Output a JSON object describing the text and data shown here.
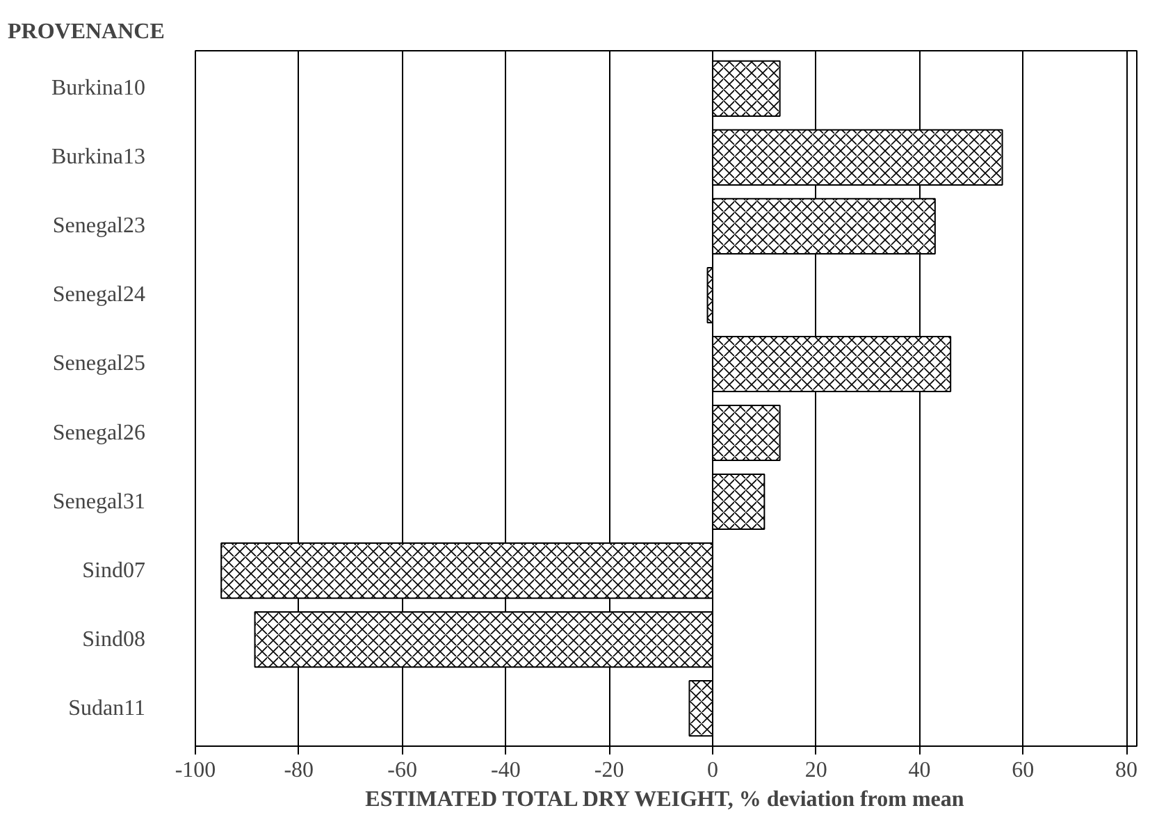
{
  "chart_data": {
    "type": "bar",
    "orientation": "horizontal",
    "ylabel": "PROVENANCE",
    "xlabel": "ESTIMATED TOTAL DRY WEIGHT, % deviation from mean",
    "categories": [
      "Burkina10",
      "Burkina13",
      "Senegal23",
      "Senegal24",
      "Senegal25",
      "Senegal26",
      "Senegal31",
      "Sind07",
      "Sind08",
      "Sudan11"
    ],
    "values": [
      13,
      56,
      43,
      -1,
      46,
      13,
      10,
      -95,
      -88.5,
      -4.5
    ],
    "color": "#000000",
    "xlim": [
      -100,
      82
    ],
    "xticks": [
      -100,
      -80,
      -60,
      -40,
      -20,
      0,
      20,
      40,
      60,
      80
    ],
    "grid": "x"
  }
}
